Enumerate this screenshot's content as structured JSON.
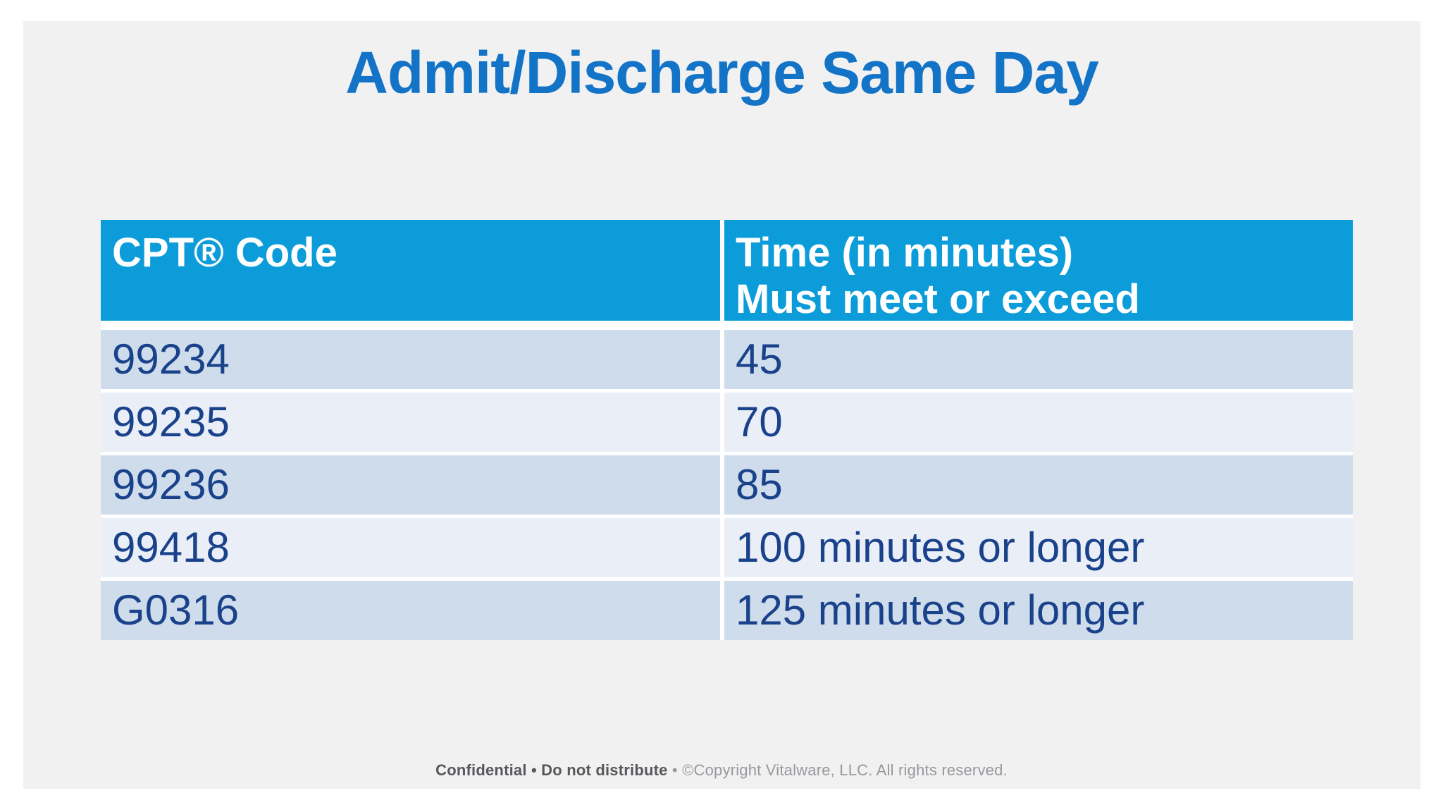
{
  "slide": {
    "title": "Admit/Discharge Same Day",
    "footer": {
      "confidential": "Confidential • Do not distribute",
      "copyright": " • ©Copyright Vitalware, LLC. All rights reserved."
    }
  },
  "table": {
    "columns": {
      "col1": "CPT® Code",
      "col2_line1": "Time (in minutes)",
      "col2_line2": "Must meet or exceed"
    },
    "rows": [
      [
        "99234",
        "45"
      ],
      [
        "99235",
        "70"
      ],
      [
        "99236",
        "85"
      ],
      [
        "99418",
        "100 minutes or longer"
      ],
      [
        "G0316",
        "125 minutes or longer"
      ]
    ]
  },
  "colors": {
    "title_blue": "#1273c7",
    "header_background": "#0c9cd9",
    "header_text": "#ffffff",
    "row_dark_background": "#cedcec",
    "row_light_background": "#e9eef7",
    "row_text_navy": "#1a428a",
    "panel_background": "#f1f1f2",
    "page_background": "#ffffff",
    "footer_bold_gray": "#58585c",
    "footer_light_gray": "#98989d"
  }
}
